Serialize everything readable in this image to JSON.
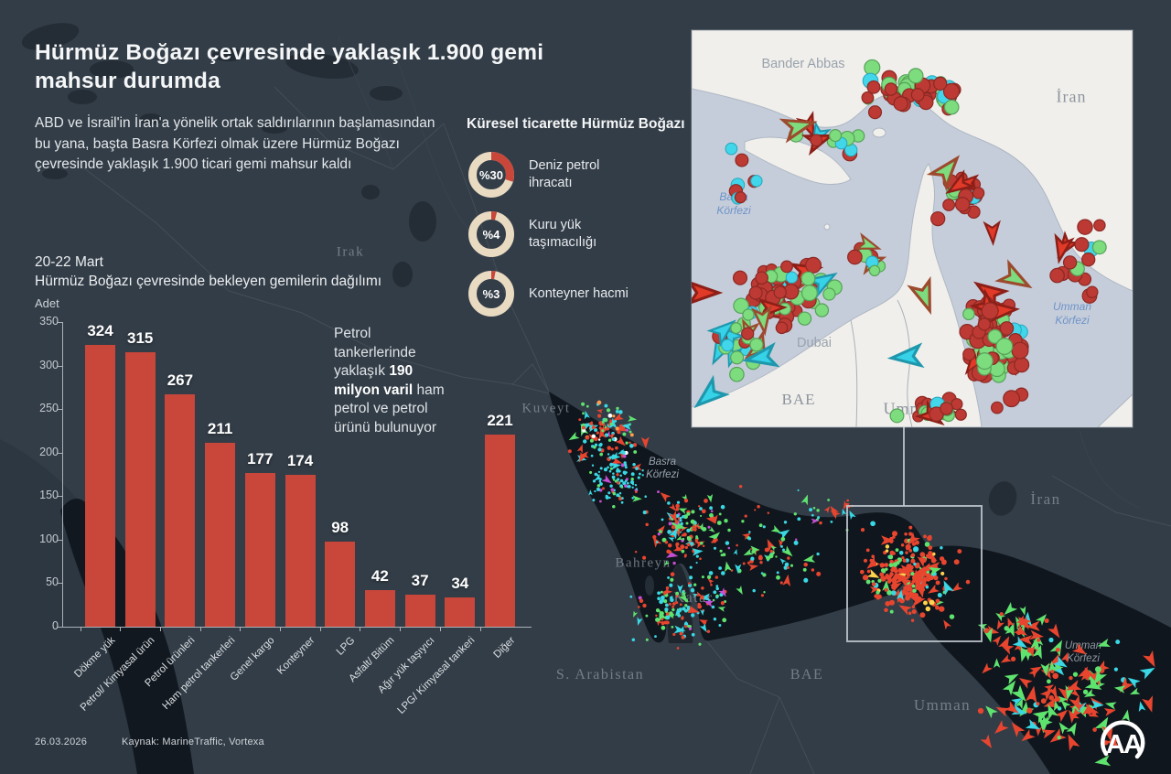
{
  "header": {
    "title_line1": "Hürmüz Boğazı çevresinde yaklaşık 1.900 gemi",
    "title_line2": "mahsur durumda",
    "intro": "ABD ve İsrail'in İran'a yönelik ortak saldırılarının başlamasından bu yana, başta Basra Körfezi olmak üzere Hürmüz Boğazı çevresinde yaklaşık 1.900 ticari gemi mahsur kaldı"
  },
  "trade": {
    "heading": "Küresel ticarette Hürmüz Boğazı",
    "items": [
      {
        "display": "%30",
        "value": 30,
        "label": "Deniz petrol ihracatı"
      },
      {
        "display": "%4",
        "value": 4,
        "label": "Kuru yük taşımacılığı"
      },
      {
        "display": "%3",
        "value": 3,
        "label": "Konteyner hacmi"
      }
    ]
  },
  "note": {
    "pre": "Petrol tankerlerinde yaklaşık ",
    "bold": "190 milyon varil",
    "post": " ham petrol ve petrol ürünü bulunuyor"
  },
  "chart_data": [
    {
      "type": "bar",
      "title": "20-22 Mart",
      "subtitle": "Hürmüz Boğazı çevresinde bekleyen gemilerin dağılımı",
      "ylabel": "Adet",
      "xlabel": "",
      "ylim": [
        0,
        350
      ],
      "yticks": [
        0,
        50,
        100,
        150,
        200,
        250,
        300,
        350
      ],
      "categories": [
        "Dökme yük",
        "Petrol/ Kimyasal ürün",
        "Petrol ürünleri",
        "Ham petrol tankerleri",
        "Genel kargo",
        "Konteyner",
        "LPG",
        "Asfalt/ Bitüm",
        "Ağır yük taşıyıcı",
        "LPG/ Kimyasal tankeri",
        "Diğer"
      ],
      "values": [
        324,
        315,
        267,
        211,
        177,
        174,
        98,
        42,
        37,
        34,
        221
      ],
      "bar_color": "#c8463a",
      "grid": false,
      "value_labels": true,
      "legend": "none"
    },
    {
      "type": "pie",
      "style": "donut",
      "title": "Küresel ticarette Hürmüz Boğazı",
      "slices": [
        {
          "label": "Deniz petrol ihracatı",
          "value": 30,
          "display": "%30"
        },
        {
          "label": "Kuru yük taşımacılığı",
          "value": 4,
          "display": "%4"
        },
        {
          "label": "Konteyner hacmi",
          "value": 3,
          "display": "%3"
        }
      ],
      "colors": {
        "segment": "#c8463a",
        "rest": "#e9dac2"
      }
    }
  ],
  "main_map": {
    "labels": [
      "Irak",
      "Kuveyt",
      "Basra Körfezi",
      "Bahreyn",
      "Katar",
      "S. Arabistan",
      "BAE",
      "Umman",
      "İran",
      "Umman Körfezi"
    ]
  },
  "inset_map": {
    "labels": [
      "Bander Abbas",
      "İran",
      "Basra Körfezi",
      "Dubai",
      "BAE",
      "Umman",
      "Umman Körfezi"
    ]
  },
  "footer": {
    "date": "26.03.2026",
    "source": "Kaynak: MarineTraffic, Vortexa",
    "logo_text": "AA"
  },
  "colors": {
    "background": "#333d47",
    "water_dark": "#10161d",
    "accent_red": "#c8463a",
    "donut_rest": "#e9dac2",
    "marker_red": "#e8452f",
    "marker_green": "#5fe36f",
    "marker_cyan": "#39d8e4",
    "marker_magenta": "#c44fd4",
    "inset_land": "#f0efeb",
    "inset_water": "#c5cdda",
    "inset_marker_red": "#bc3a33",
    "inset_marker_green": "#7ddc7d",
    "inset_marker_cyan": "#41d6ea"
  }
}
